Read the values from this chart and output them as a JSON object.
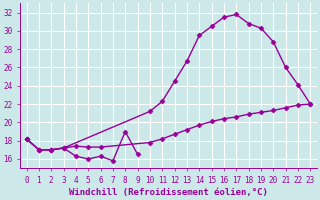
{
  "bg_color": "#cce8e8",
  "grid_color": "#ffffff",
  "line_color": "#990099",
  "marker": "D",
  "markersize": 2.5,
  "linewidth": 1.0,
  "xlabel": "Windchill (Refroidissement éolien,°C)",
  "xlabel_fontsize": 6.5,
  "tick_fontsize": 5.5,
  "xlim": [
    -0.5,
    23.5
  ],
  "ylim": [
    15.0,
    33.0
  ],
  "yticks": [
    16,
    18,
    20,
    22,
    24,
    26,
    28,
    30,
    32
  ],
  "xticks": [
    0,
    1,
    2,
    3,
    4,
    5,
    6,
    7,
    8,
    9,
    10,
    11,
    12,
    13,
    14,
    15,
    16,
    17,
    18,
    19,
    20,
    21,
    22,
    23
  ],
  "line1_x": [
    0,
    1,
    2,
    3,
    4,
    5,
    6,
    7,
    8,
    9
  ],
  "line1_y": [
    18.2,
    17.0,
    17.0,
    17.2,
    16.3,
    16.0,
    16.3,
    15.8,
    19.0,
    16.5
  ],
  "line2_x": [
    0,
    1,
    2,
    3,
    10,
    11,
    12,
    13,
    14,
    15,
    16,
    17,
    18,
    19,
    20,
    21,
    22,
    23
  ],
  "line2_y": [
    18.2,
    17.0,
    17.0,
    17.2,
    21.2,
    22.3,
    24.5,
    26.7,
    29.5,
    30.5,
    31.5,
    31.8,
    30.8,
    30.3,
    28.8,
    26.0,
    24.1,
    22.0
  ],
  "line3_x": [
    0,
    1,
    2,
    3,
    4,
    5,
    6,
    10,
    11,
    12,
    13,
    14,
    15,
    16,
    17,
    18,
    19,
    20,
    21,
    22,
    23
  ],
  "line3_y": [
    18.2,
    17.0,
    17.0,
    17.2,
    17.4,
    17.3,
    17.3,
    17.8,
    18.2,
    18.7,
    19.2,
    19.7,
    20.1,
    20.4,
    20.6,
    20.9,
    21.1,
    21.3,
    21.6,
    21.9,
    22.0
  ]
}
